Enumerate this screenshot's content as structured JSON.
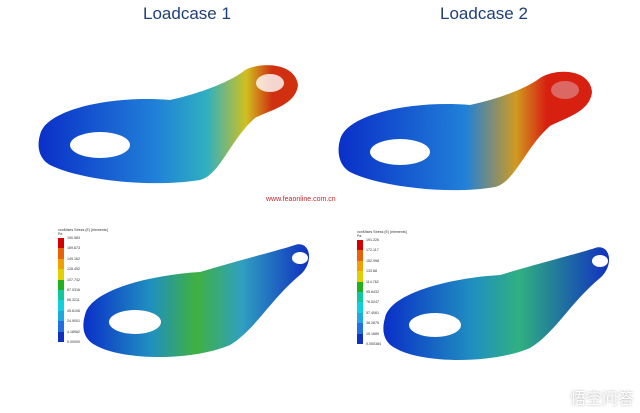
{
  "titles": [
    "Loadcase 1",
    "Loadcase 2"
  ],
  "source_url": "www.feaonline.com.cn",
  "legends": [
    {
      "header": "vonMises Stress (E) [elements]",
      "unit": "Pa",
      "values": [
        "190.583",
        "169.873",
        "149.162",
        "128.452",
        "107.742",
        "87.0316",
        "66.3211",
        "45.6106",
        "24.9001",
        "4.18962",
        "0.00000"
      ]
    },
    {
      "header": "vonMises Stress (E) [elements]",
      "unit": "Pa",
      "values": [
        "191.226",
        "172.117",
        "152.998",
        "133.88",
        "114.762",
        "95.6432",
        "76.5247",
        "57.4061",
        "38.2875",
        "19.1689",
        "0.050384"
      ]
    }
  ],
  "colors": [
    "#d40000",
    "#e8620a",
    "#f0a000",
    "#e0d000",
    "#20b020",
    "#10c8a0",
    "#10d0e0",
    "#20a8e0",
    "#2070e0",
    "#1030c0",
    "#0010a0"
  ],
  "watermark": "悟空问答"
}
